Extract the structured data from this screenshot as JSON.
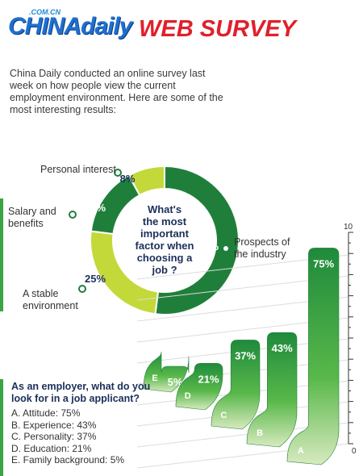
{
  "header": {
    "logo_sub": ".COM.CN",
    "logo_text": "CHINAdaily",
    "title": "WEB SURVEY"
  },
  "intro_text": "China Daily conducted an online survey last week on how people view the current employment environment. Here are some of the most interesting results:",
  "colors": {
    "dark_green": "#1f7f3a",
    "mid_green": "#3aa544",
    "light_green": "#c3d93a",
    "navy": "#1b2f5a",
    "red": "#e0202b",
    "brand_blue": "#1e6fd0"
  },
  "chart_data": [
    {
      "type": "pie",
      "donut": true,
      "title": "What's the most important factor when choosing a job ?",
      "slices": [
        {
          "label": "Prospects of the industry",
          "value": 52,
          "value_label": "52%",
          "color": "#1f7f3a"
        },
        {
          "label": "A stable environment",
          "value": 25,
          "value_label": "25%",
          "color": "#c3d93a"
        },
        {
          "label": "Salary and benefits",
          "value": 15,
          "value_label": "15%",
          "color": "#1f7f3a"
        },
        {
          "label": "Personal interest",
          "value": 8,
          "value_label": "8%",
          "color": "#c3d93a"
        }
      ]
    },
    {
      "type": "bar",
      "title": "As an employer, what do you look for in a job applicant?",
      "categories": [
        "E",
        "D",
        "C",
        "B",
        "A"
      ],
      "values": [
        5,
        21,
        37,
        43,
        75
      ],
      "value_labels": [
        "5%",
        "21%",
        "37%",
        "43%",
        "75%"
      ],
      "axis_tick_labels": [
        "0",
        "10"
      ],
      "ylim": [
        0,
        100
      ],
      "legend": [
        "A. Attitude: 75%",
        "B. Experience: 43%",
        "C. Personality: 37%",
        "D. Education: 21%",
        "E. Family background: 5%"
      ]
    }
  ]
}
